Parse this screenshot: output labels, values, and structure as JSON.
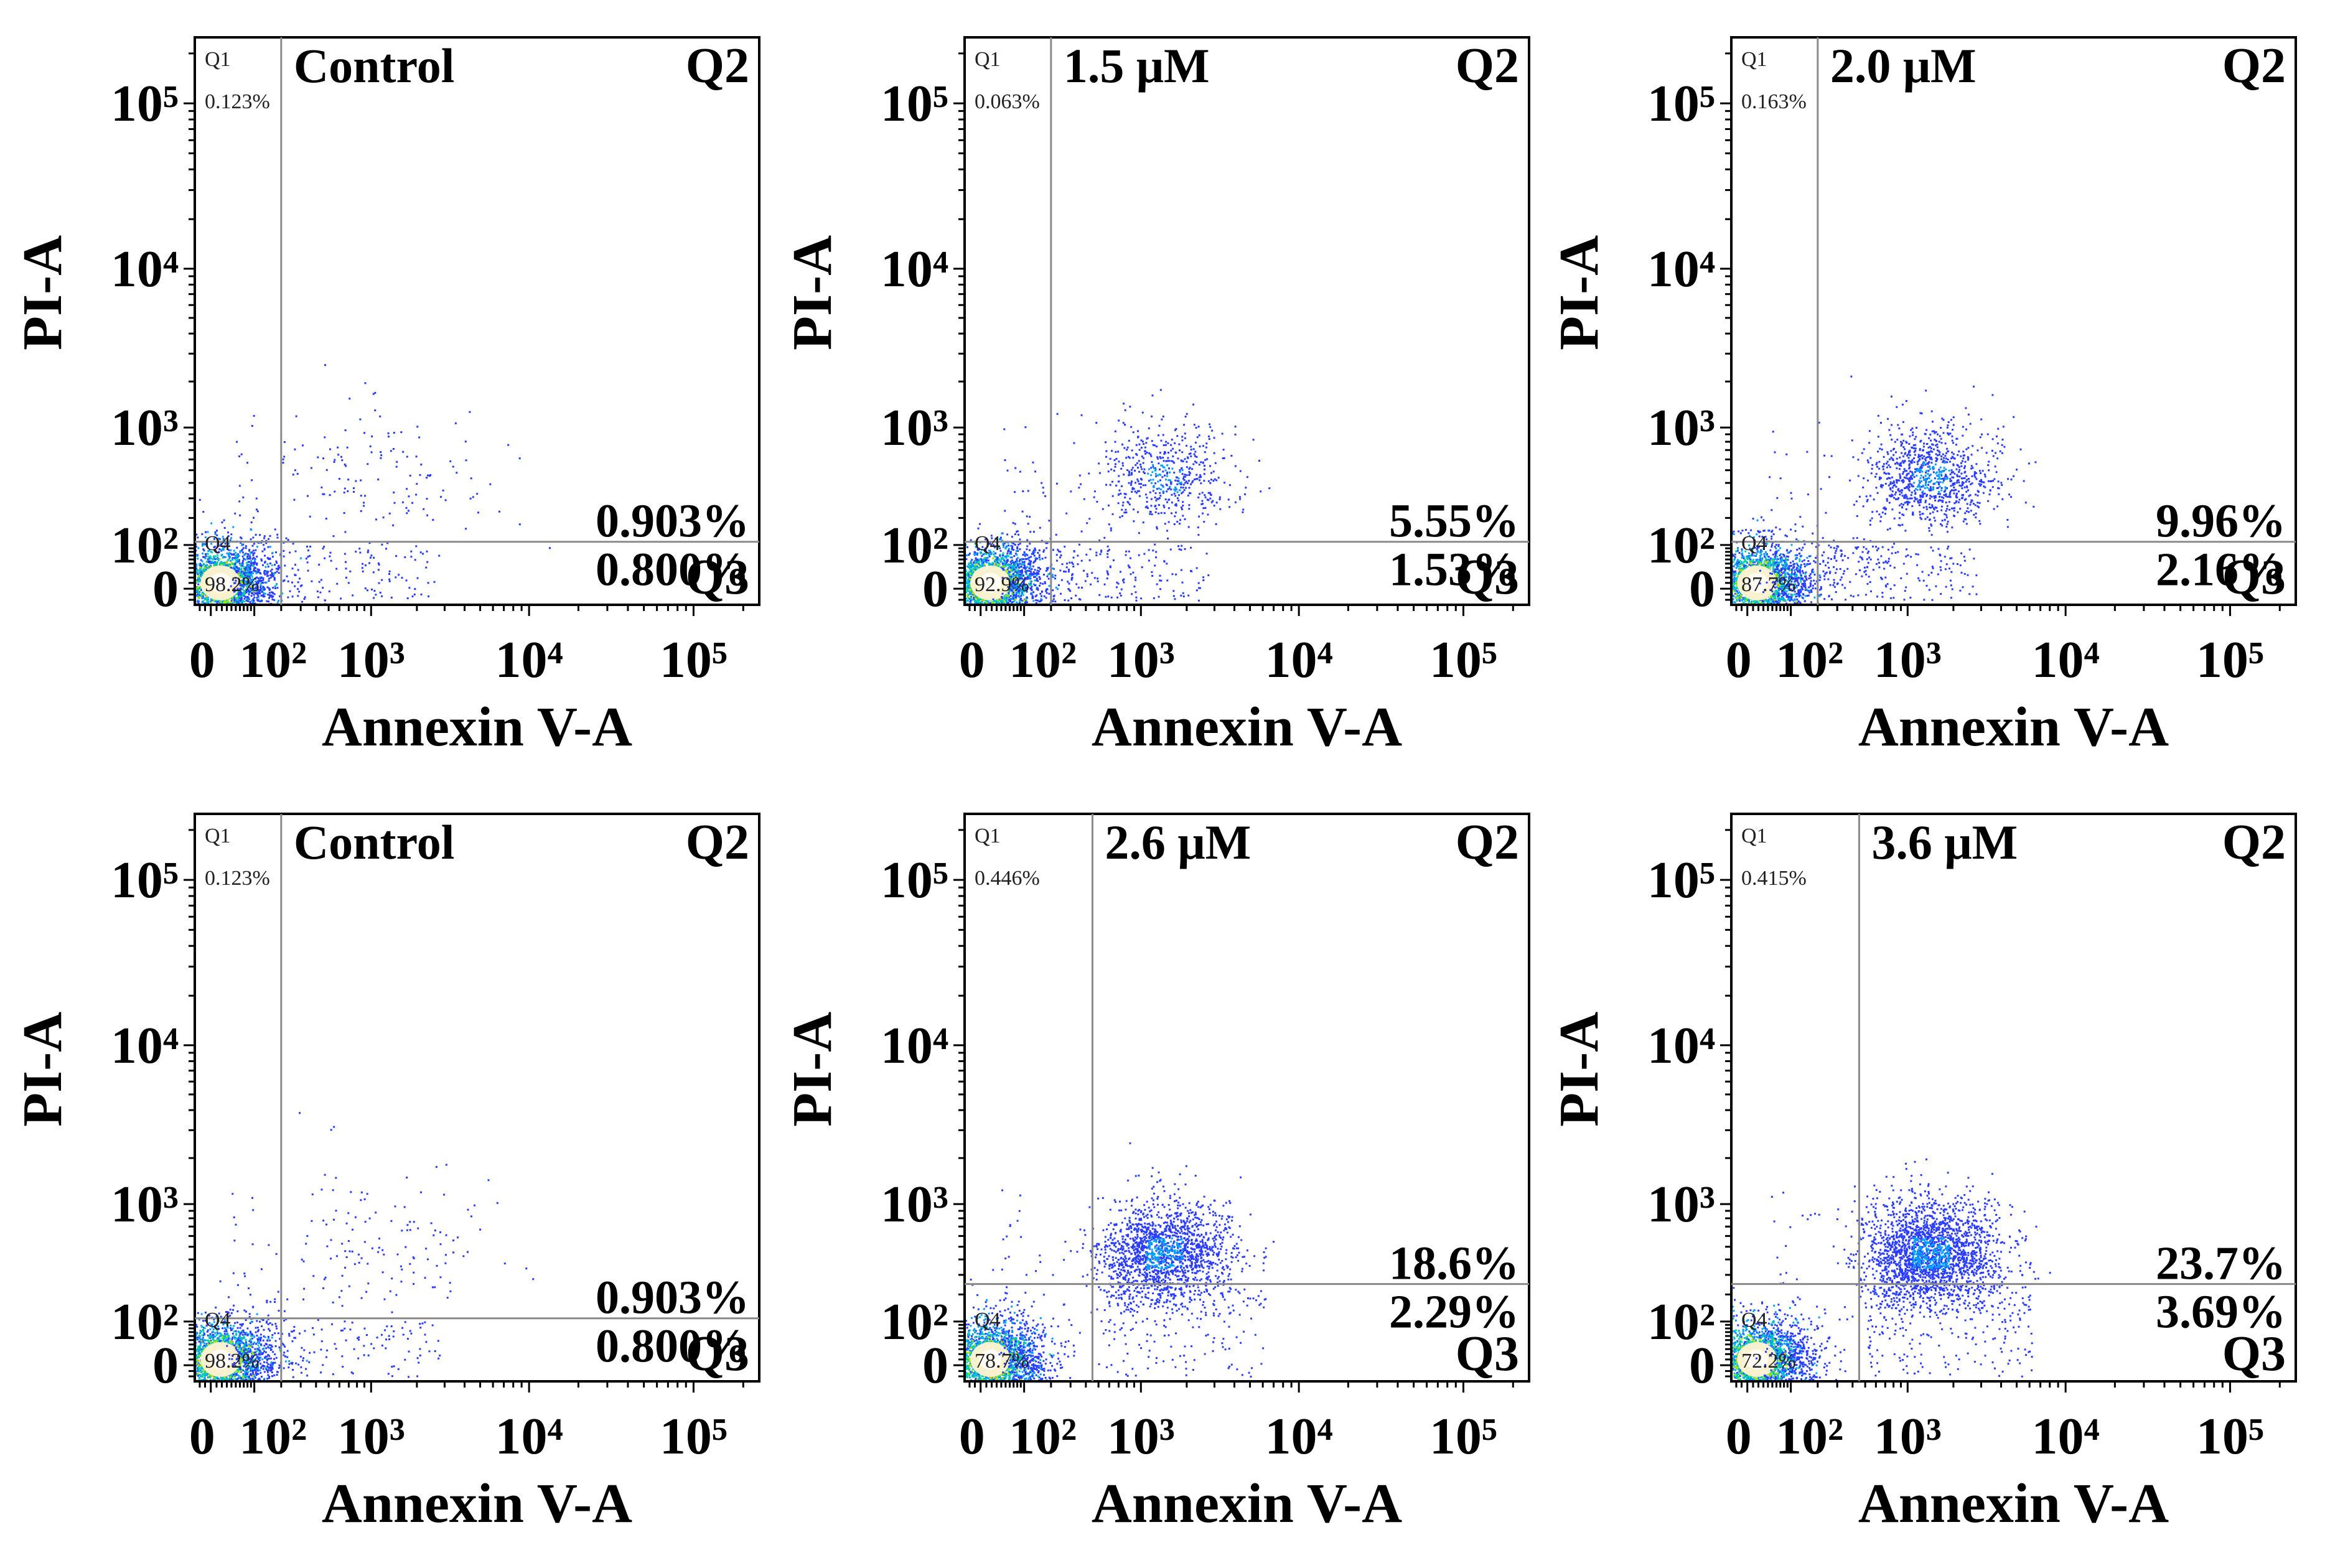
{
  "chart_data": [
    {
      "type": "scatter",
      "panel": "top-left",
      "title": "Control",
      "xlabel": "Annexin V-A",
      "ylabel": "PI-A",
      "x_ticks": [
        "0",
        "10²",
        "10³",
        "10⁴",
        "10⁵"
      ],
      "y_ticks": [
        "0",
        "10²",
        "10³",
        "10⁴",
        "10⁵"
      ],
      "quadrant_names": {
        "q1": "Q1",
        "q2": "Q2",
        "q3": "Q3",
        "q4": "Q4"
      },
      "q1_pct": "0.123%",
      "q2_pct": "0.903%",
      "q3_pct": "0.800%",
      "q4_pct": "98.2%",
      "gate_x": 200,
      "gate_y": 110
    },
    {
      "type": "scatter",
      "panel": "top-middle",
      "title": "1.5 μM",
      "xlabel": "Annexin V-A",
      "ylabel": "PI-A",
      "x_ticks": [
        "0",
        "10²",
        "10³",
        "10⁴",
        "10⁵"
      ],
      "y_ticks": [
        "0",
        "10²",
        "10³",
        "10⁴",
        "10⁵"
      ],
      "quadrant_names": {
        "q1": "Q1",
        "q2": "Q2",
        "q3": "Q3",
        "q4": "Q4"
      },
      "q1_pct": "0.063%",
      "q2_pct": "5.55%",
      "q3_pct": "1.53%",
      "q4_pct": "92.9%",
      "gate_x": 200,
      "gate_y": 110
    },
    {
      "type": "scatter",
      "panel": "top-right",
      "title": "2.0 μM",
      "xlabel": "Annexin V-A",
      "ylabel": "PI-A",
      "x_ticks": [
        "0",
        "10²",
        "10³",
        "10⁴",
        "10⁵"
      ],
      "y_ticks": [
        "0",
        "10²",
        "10³",
        "10⁴",
        "10⁵"
      ],
      "quadrant_names": {
        "q1": "Q1",
        "q2": "Q2",
        "q3": "Q3",
        "q4": "Q4"
      },
      "q1_pct": "0.163%",
      "q2_pct": "9.96%",
      "q3_pct": "2.16%",
      "q4_pct": "87.7%",
      "gate_x": 200,
      "gate_y": 110
    },
    {
      "type": "scatter",
      "panel": "bottom-left",
      "title": "Control",
      "xlabel": "Annexin V-A",
      "ylabel": "PI-A",
      "x_ticks": [
        "0",
        "10²",
        "10³",
        "10⁴",
        "10⁵"
      ],
      "y_ticks": [
        "0",
        "10²",
        "10³",
        "10⁴",
        "10⁵"
      ],
      "quadrant_names": {
        "q1": "Q1",
        "q2": "Q2",
        "q3": "Q3",
        "q4": "Q4"
      },
      "q1_pct": "0.123%",
      "q2_pct": "0.903%",
      "q3_pct": "0.800%",
      "q4_pct": "98.2%",
      "gate_x": 200,
      "gate_y": 110
    },
    {
      "type": "scatter",
      "panel": "bottom-middle",
      "title": "2.6 μM",
      "xlabel": "Annexin V-A",
      "ylabel": "PI-A",
      "x_ticks": [
        "0",
        "10²",
        "10³",
        "10⁴",
        "10⁵"
      ],
      "y_ticks": [
        "0",
        "10²",
        "10³",
        "10⁴",
        "10⁵"
      ],
      "quadrant_names": {
        "q1": "Q1",
        "q2": "Q2",
        "q3": "Q3",
        "q4": "Q4"
      },
      "q1_pct": "0.446%",
      "q2_pct": "18.6%",
      "q3_pct": "2.29%",
      "q4_pct": "78.7%",
      "gate_x": 450,
      "gate_y": 250
    },
    {
      "type": "scatter",
      "panel": "bottom-right",
      "title": "3.6 μM",
      "xlabel": "Annexin V-A",
      "ylabel": "PI-A",
      "x_ticks": [
        "0",
        "10²",
        "10³",
        "10⁴",
        "10⁵"
      ],
      "y_ticks": [
        "0",
        "10²",
        "10³",
        "10⁴",
        "10⁵"
      ],
      "quadrant_names": {
        "q1": "Q1",
        "q2": "Q2",
        "q3": "Q3",
        "q4": "Q4"
      },
      "q1_pct": "0.415%",
      "q2_pct": "23.7%",
      "q3_pct": "3.69%",
      "q4_pct": "72.2%",
      "gate_x": 450,
      "gate_y": 250
    }
  ],
  "colors": {
    "axis": "#000000",
    "gate_line": "#8a8a8a",
    "sparse_dot": "#2a3cff",
    "dense_1": "#00a0ff",
    "dense_2": "#00d2a0",
    "dense_3": "#9be800",
    "dense_4": "#ffb000",
    "core_glow": "#fff3d6"
  }
}
